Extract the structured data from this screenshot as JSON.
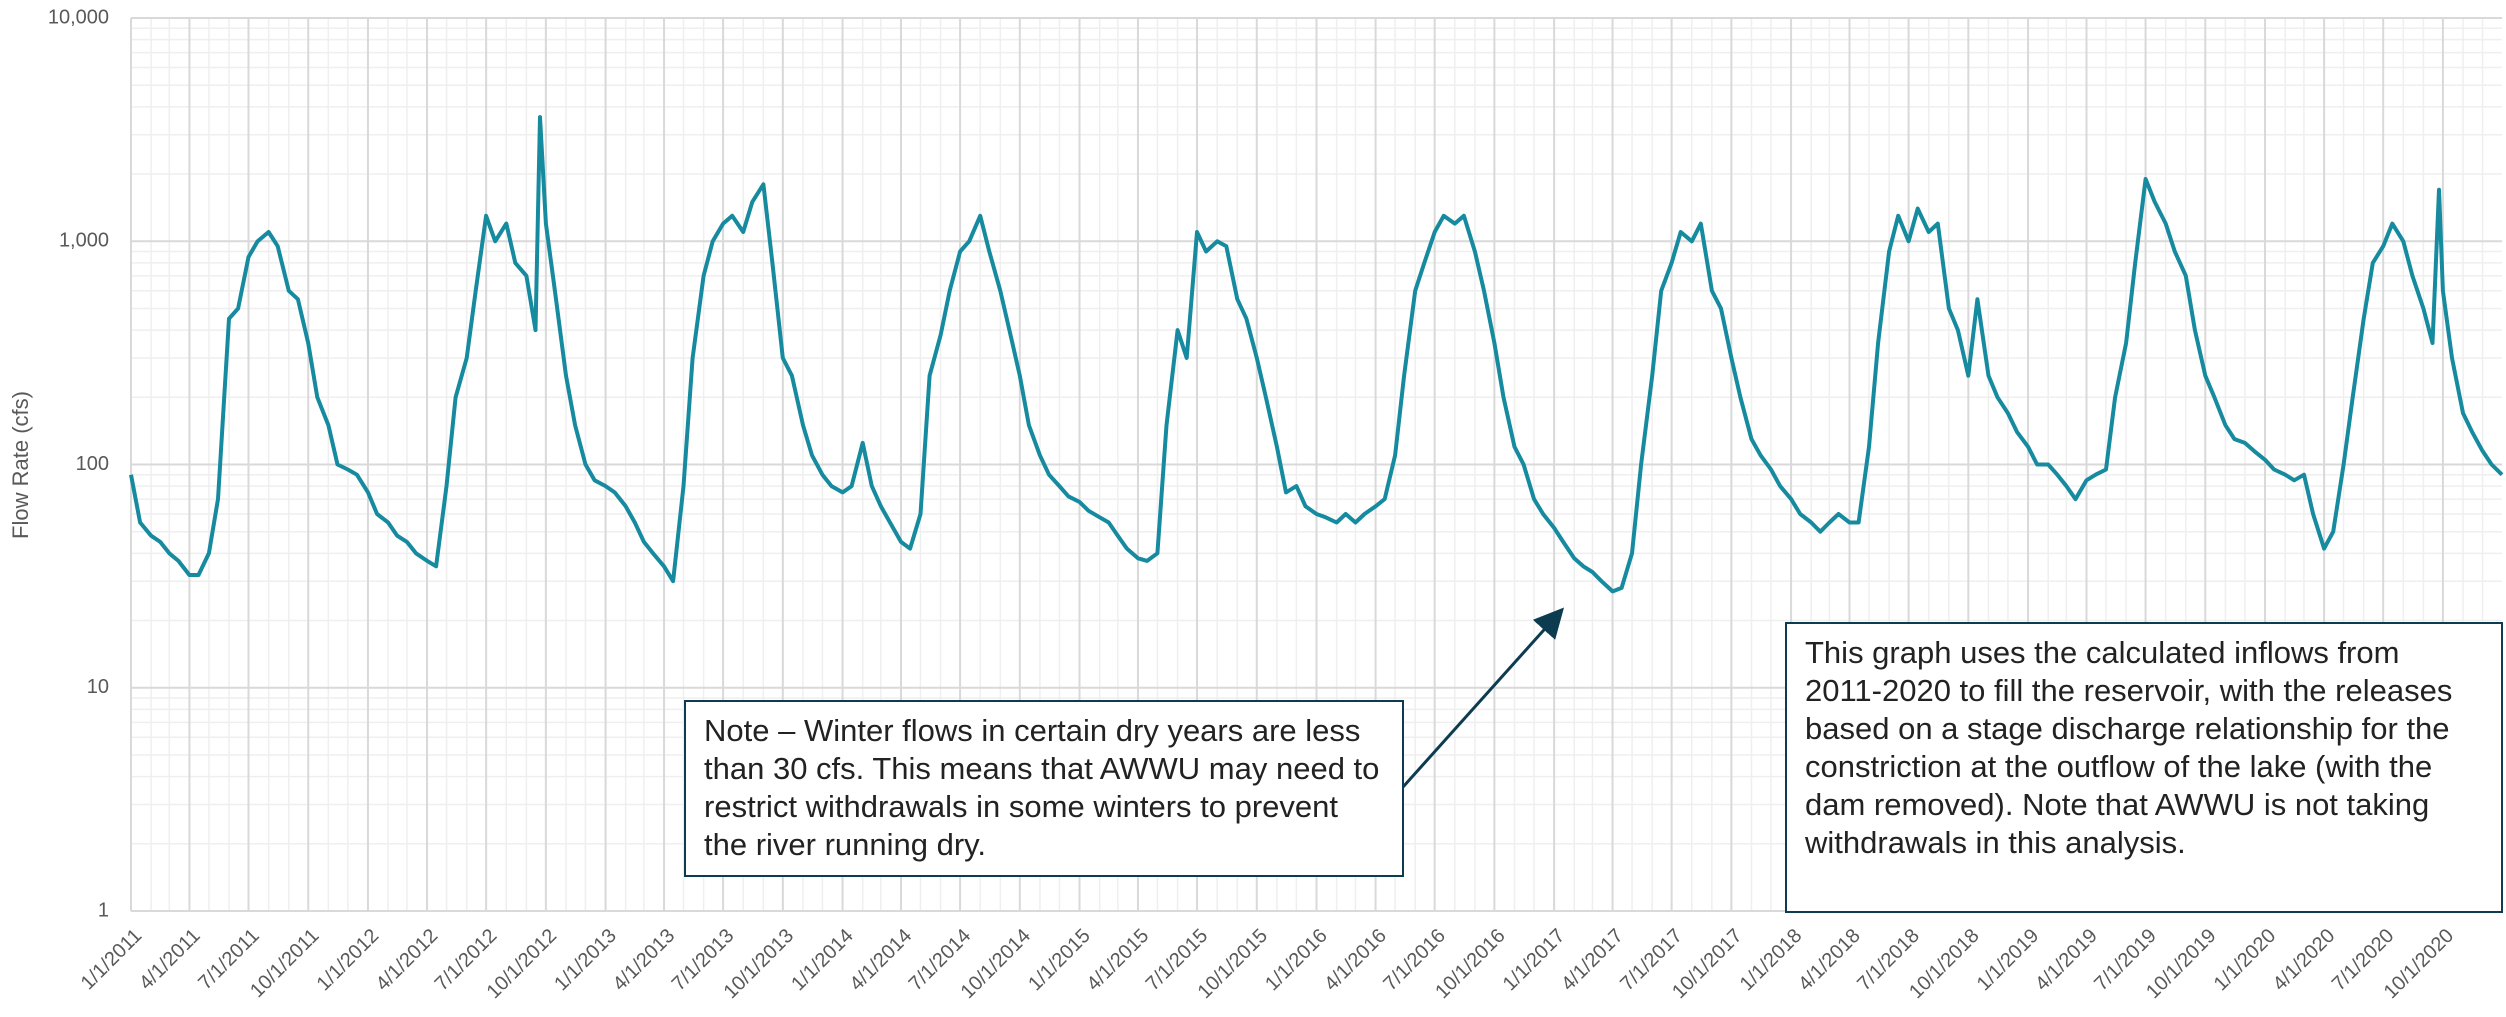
{
  "chart_data": {
    "type": "line",
    "y_label": "Flow Rate (cfs)",
    "log_scale": true,
    "grid": true,
    "minor_grid": true,
    "ylim": [
      1,
      10000
    ],
    "yticks": [
      1,
      10,
      100,
      {
        "value": 1000,
        "label": "1,000"
      },
      {
        "value": 10000,
        "label": "10,000"
      }
    ],
    "xlim": [
      "1/1/2011",
      "12/31/2020"
    ],
    "xticks": [
      "1/1/2011",
      "4/1/2011",
      "7/1/2011",
      "10/1/2011",
      "1/1/2012",
      "4/1/2012",
      "7/1/2012",
      "10/1/2012",
      "1/1/2013",
      "4/1/2013",
      "7/1/2013",
      "10/1/2013",
      "1/1/2014",
      "4/1/2014",
      "7/1/2014",
      "10/1/2014",
      "1/1/2015",
      "4/1/2015",
      "7/1/2015",
      "10/1/2015",
      "1/1/2016",
      "4/1/2016",
      "7/1/2016",
      "10/1/2016",
      "1/1/2017",
      "4/1/2017",
      "7/1/2017",
      "10/1/2017",
      "1/1/2018",
      "4/1/2018",
      "7/1/2018",
      "10/1/2018",
      "1/1/2019",
      "4/1/2019",
      "7/1/2019",
      "10/1/2019",
      "1/1/2020",
      "4/1/2020",
      "7/1/2020",
      "10/1/2020"
    ],
    "x": [
      "1/1/2011",
      "1/15/2011",
      "2/1/2011",
      "2/15/2011",
      "3/1/2011",
      "3/15/2011",
      "4/1/2011",
      "4/15/2011",
      "5/1/2011",
      "5/15/2011",
      "6/1/2011",
      "6/15/2011",
      "7/1/2011",
      "7/15/2011",
      "8/1/2011",
      "8/15/2011",
      "9/1/2011",
      "9/15/2011",
      "10/1/2011",
      "10/15/2011",
      "11/1/2011",
      "11/15/2011",
      "12/1/2011",
      "12/15/2011",
      "1/1/2012",
      "1/15/2012",
      "2/1/2012",
      "2/15/2012",
      "3/1/2012",
      "3/15/2012",
      "4/1/2012",
      "4/15/2012",
      "5/1/2012",
      "5/15/2012",
      "6/1/2012",
      "6/15/2012",
      "7/1/2012",
      "7/15/2012",
      "8/1/2012",
      "8/15/2012",
      "9/1/2012",
      "9/15/2012",
      "9/22/2012",
      "10/1/2012",
      "10/15/2012",
      "11/1/2012",
      "11/15/2012",
      "12/1/2012",
      "12/15/2012",
      "1/1/2013",
      "1/15/2013",
      "2/1/2013",
      "2/15/2013",
      "3/1/2013",
      "3/15/2013",
      "4/1/2013",
      "4/15/2013",
      "5/1/2013",
      "5/15/2013",
      "6/1/2013",
      "6/15/2013",
      "7/1/2013",
      "7/15/2013",
      "8/1/2013",
      "8/15/2013",
      "9/1/2013",
      "9/15/2013",
      "10/1/2013",
      "10/15/2013",
      "11/1/2013",
      "11/15/2013",
      "12/1/2013",
      "12/15/2013",
      "1/1/2014",
      "1/15/2014",
      "2/1/2014",
      "2/15/2014",
      "3/1/2014",
      "3/15/2014",
      "4/1/2014",
      "4/15/2014",
      "5/1/2014",
      "5/15/2014",
      "6/1/2014",
      "6/15/2014",
      "7/1/2014",
      "7/15/2014",
      "8/1/2014",
      "8/15/2014",
      "9/1/2014",
      "9/15/2014",
      "10/1/2014",
      "10/15/2014",
      "11/1/2014",
      "11/15/2014",
      "12/1/2014",
      "12/15/2014",
      "1/1/2015",
      "1/15/2015",
      "2/1/2015",
      "2/15/2015",
      "3/1/2015",
      "3/15/2015",
      "4/1/2015",
      "4/15/2015",
      "5/1/2015",
      "5/15/2015",
      "6/1/2015",
      "6/15/2015",
      "7/1/2015",
      "7/15/2015",
      "8/1/2015",
      "8/15/2015",
      "9/1/2015",
      "9/15/2015",
      "10/1/2015",
      "10/15/2015",
      "11/1/2015",
      "11/15/2015",
      "12/1/2015",
      "12/15/2015",
      "1/1/2016",
      "1/15/2016",
      "2/1/2016",
      "2/15/2016",
      "3/1/2016",
      "3/15/2016",
      "4/1/2016",
      "4/15/2016",
      "5/1/2016",
      "5/15/2016",
      "6/1/2016",
      "6/15/2016",
      "7/1/2016",
      "7/15/2016",
      "8/1/2016",
      "8/15/2016",
      "9/1/2016",
      "9/15/2016",
      "10/1/2016",
      "10/15/2016",
      "11/1/2016",
      "11/15/2016",
      "12/1/2016",
      "12/15/2016",
      "1/1/2017",
      "1/15/2017",
      "2/1/2017",
      "2/15/2017",
      "3/1/2017",
      "3/15/2017",
      "4/1/2017",
      "4/15/2017",
      "5/1/2017",
      "5/15/2017",
      "6/1/2017",
      "6/15/2017",
      "7/1/2017",
      "7/15/2017",
      "8/1/2017",
      "8/15/2017",
      "9/1/2017",
      "9/15/2017",
      "10/1/2017",
      "10/15/2017",
      "11/1/2017",
      "11/15/2017",
      "12/1/2017",
      "12/15/2017",
      "1/1/2018",
      "1/15/2018",
      "2/1/2018",
      "2/15/2018",
      "3/1/2018",
      "3/15/2018",
      "4/1/2018",
      "4/15/2018",
      "5/1/2018",
      "5/15/2018",
      "6/1/2018",
      "6/15/2018",
      "7/1/2018",
      "7/15/2018",
      "8/1/2018",
      "8/15/2018",
      "9/1/2018",
      "9/15/2018",
      "10/1/2018",
      "10/15/2018",
      "11/1/2018",
      "11/15/2018",
      "12/1/2018",
      "12/15/2018",
      "1/1/2019",
      "1/15/2019",
      "2/1/2019",
      "2/15/2019",
      "3/1/2019",
      "3/15/2019",
      "4/1/2019",
      "4/15/2019",
      "5/1/2019",
      "5/15/2019",
      "6/1/2019",
      "6/15/2019",
      "7/1/2019",
      "7/15/2019",
      "8/1/2019",
      "8/15/2019",
      "9/1/2019",
      "9/15/2019",
      "10/1/2019",
      "10/15/2019",
      "11/1/2019",
      "11/15/2019",
      "12/1/2019",
      "12/15/2019",
      "1/1/2020",
      "1/15/2020",
      "2/1/2020",
      "2/15/2020",
      "3/1/2020",
      "3/15/2020",
      "4/1/2020",
      "4/15/2020",
      "5/1/2020",
      "5/15/2020",
      "6/1/2020",
      "6/15/2020",
      "7/1/2020",
      "7/15/2020",
      "8/1/2020",
      "8/15/2020",
      "9/1/2020",
      "9/15/2020",
      "9/25/2020",
      "10/1/2020",
      "10/15/2020",
      "11/1/2020",
      "11/15/2020",
      "12/1/2020",
      "12/15/2020",
      "12/31/2020"
    ],
    "series": [
      {
        "name": "Flow Rate",
        "color": "#168a9f",
        "values": [
          90,
          55,
          48,
          45,
          40,
          37,
          32,
          32,
          40,
          70,
          450,
          500,
          850,
          1000,
          1100,
          950,
          600,
          550,
          350,
          200,
          150,
          100,
          95,
          90,
          75,
          60,
          55,
          48,
          45,
          40,
          37,
          35,
          80,
          200,
          300,
          600,
          1300,
          1000,
          1200,
          800,
          700,
          400,
          3600,
          1200,
          600,
          250,
          150,
          100,
          85,
          80,
          75,
          65,
          55,
          45,
          40,
          35,
          30,
          80,
          300,
          700,
          1000,
          1200,
          1300,
          1100,
          1500,
          1800,
          800,
          300,
          250,
          150,
          110,
          90,
          80,
          75,
          80,
          125,
          80,
          65,
          55,
          45,
          42,
          60,
          250,
          380,
          600,
          900,
          1000,
          1300,
          900,
          600,
          400,
          250,
          150,
          110,
          90,
          80,
          72,
          68,
          62,
          58,
          55,
          48,
          42,
          38,
          37,
          40,
          150,
          400,
          300,
          1100,
          900,
          1000,
          950,
          550,
          450,
          300,
          200,
          120,
          75,
          80,
          65,
          60,
          58,
          55,
          60,
          55,
          60,
          65,
          70,
          110,
          250,
          600,
          800,
          1100,
          1300,
          1200,
          1300,
          900,
          600,
          350,
          200,
          120,
          100,
          70,
          60,
          52,
          45,
          38,
          35,
          33,
          30,
          27,
          28,
          40,
          100,
          250,
          600,
          800,
          1100,
          1000,
          1200,
          600,
          500,
          300,
          200,
          130,
          110,
          95,
          80,
          70,
          60,
          55,
          50,
          55,
          60,
          55,
          55,
          120,
          350,
          900,
          1300,
          1000,
          1400,
          1100,
          1200,
          500,
          400,
          250,
          550,
          250,
          200,
          170,
          140,
          120,
          100,
          100,
          90,
          80,
          70,
          85,
          90,
          95,
          200,
          350,
          800,
          1900,
          1500,
          1200,
          900,
          700,
          400,
          250,
          200,
          150,
          130,
          125,
          115,
          105,
          95,
          90,
          85,
          90,
          60,
          42,
          50,
          100,
          200,
          450,
          800,
          950,
          1200,
          1000,
          700,
          500,
          350,
          1700,
          600,
          300,
          170,
          140,
          115,
          100,
          90
        ]
      }
    ],
    "annotations": [
      {
        "text": "Note – Winter flows in certain dry years are less than 30 cfs. This means that AWWU may need to restrict withdrawals in some winters to prevent the river running dry."
      },
      {
        "text": "This graph uses the calculated inflows from 2011-2020 to fill the reservoir, with the releases based on a stage discharge relationship for the constriction at the outflow of the lake (with the dam removed). Note that AWWU is not taking withdrawals in this analysis."
      }
    ]
  }
}
